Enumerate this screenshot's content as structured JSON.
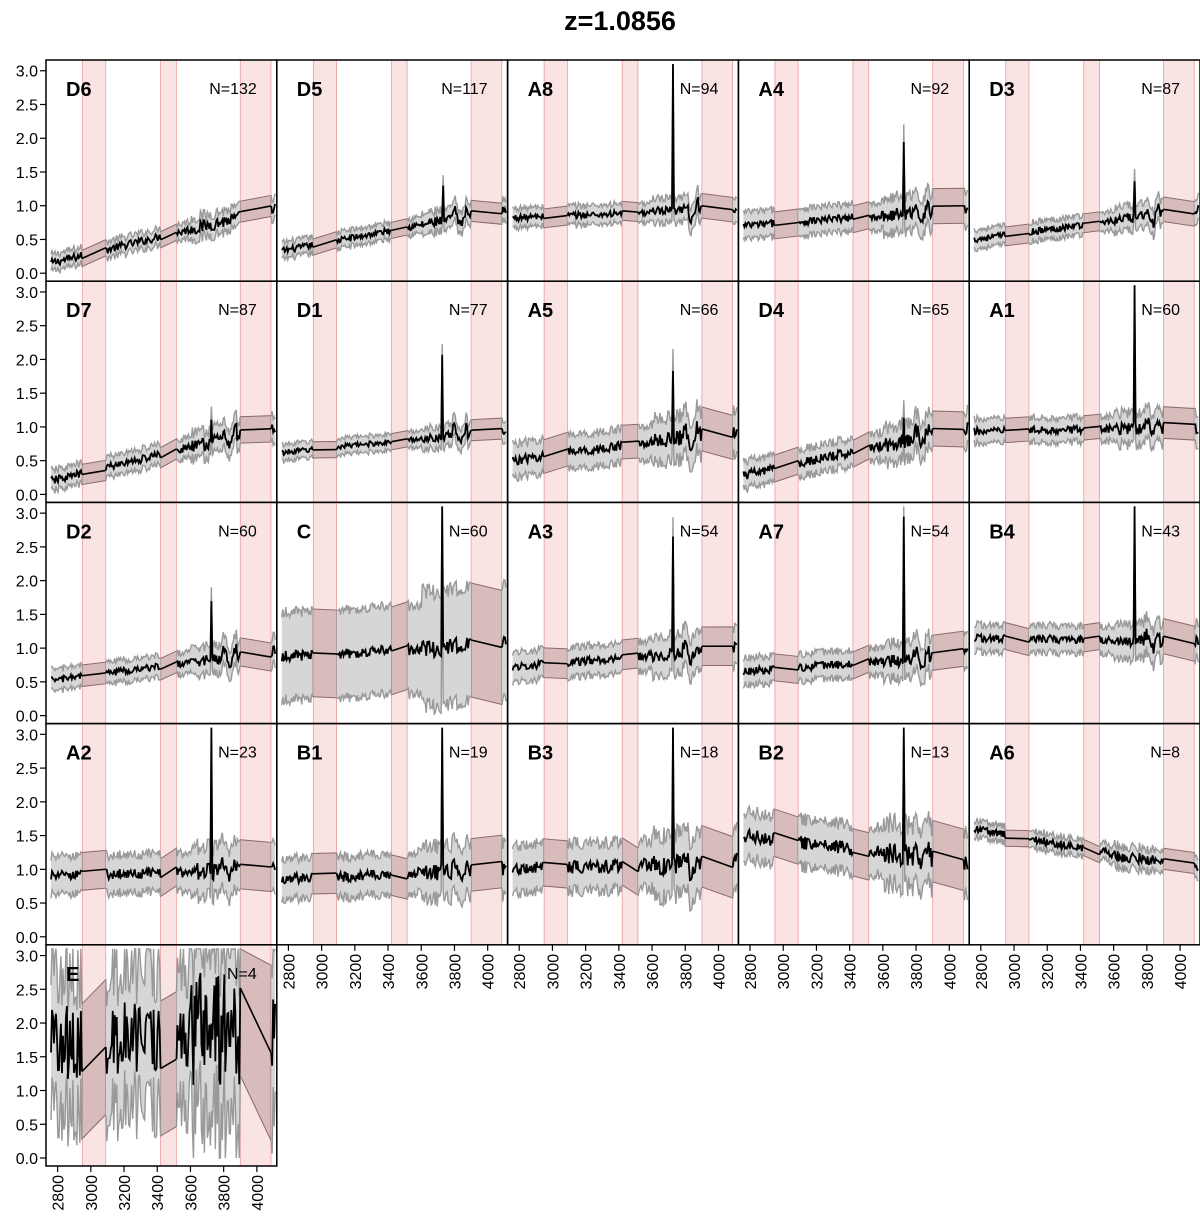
{
  "title": "z=1.0856",
  "colors": {
    "band": "#f4c2c2",
    "band_edge": "#ec9c9c",
    "envelope_fill": "#d6d6d6",
    "envelope_line": "#999999",
    "extrap_fill": "#c9a9a9",
    "extrap_line": "#8a6a6a",
    "median": "#000000"
  },
  "chart_data": {
    "type": "line",
    "layout": "5x5 small-multiples grid of line panels with shaded min/max envelope",
    "x_ticks": [
      2800,
      3000,
      3200,
      3400,
      3600,
      3800,
      4000
    ],
    "x_tick_labels": [
      "2800",
      "3000",
      "3200",
      "3400",
      "3600",
      "3800",
      "4000"
    ],
    "xlim": [
      2730,
      4120
    ],
    "y_ticks": [
      0.0,
      0.5,
      1.0,
      1.5,
      2.0,
      2.5,
      3.0
    ],
    "y_tick_labels": [
      "0.0",
      "0.5",
      "1.0",
      "1.5",
      "2.0",
      "2.5",
      "3.0"
    ],
    "ylim": [
      0,
      3.1
    ],
    "shaded_bands": [
      [
        2950,
        3090
      ],
      [
        3420,
        3515
      ],
      [
        3900,
        4085
      ]
    ],
    "gaps": [
      [
        2950,
        3090
      ],
      [
        3420,
        3515
      ],
      [
        3900,
        4085
      ]
    ],
    "grid": false,
    "panels": [
      {
        "label": "D6",
        "count": "N=132",
        "start": 0.15,
        "end": 0.95,
        "spike_x": null,
        "spike_h": 0,
        "noise": 0.06,
        "spread": 0.12
      },
      {
        "label": "D5",
        "count": "N=117",
        "start": 0.33,
        "end": 0.95,
        "spike_x": 3730,
        "spike_h": 0.45,
        "noise": 0.05,
        "spread": 0.12
      },
      {
        "label": "A8",
        "count": "N=94",
        "start": 0.82,
        "end": 0.95,
        "spike_x": 3728,
        "spike_h": 2.2,
        "noise": 0.05,
        "spread": 0.14
      },
      {
        "label": "A4",
        "count": "N=92",
        "start": 0.7,
        "end": 0.95,
        "spike_x": 3728,
        "spike_h": 1.0,
        "noise": 0.06,
        "spread": 0.2
      },
      {
        "label": "D3",
        "count": "N=87",
        "start": 0.5,
        "end": 0.95,
        "spike_x": 3728,
        "spike_h": 0.5,
        "noise": 0.05,
        "spread": 0.14
      },
      {
        "label": "D7",
        "count": "N=87",
        "start": 0.2,
        "end": 1.0,
        "spike_x": 3728,
        "spike_h": 0.3,
        "noise": 0.06,
        "spread": 0.15
      },
      {
        "label": "D1",
        "count": "N=77",
        "start": 0.62,
        "end": 0.95,
        "spike_x": 3728,
        "spike_h": 1.2,
        "noise": 0.04,
        "spread": 0.12
      },
      {
        "label": "A5",
        "count": "N=66",
        "start": 0.5,
        "end": 0.95,
        "spike_x": 3728,
        "spike_h": 1.0,
        "noise": 0.07,
        "spread": 0.25
      },
      {
        "label": "D4",
        "count": "N=65",
        "start": 0.28,
        "end": 1.0,
        "spike_x": 3728,
        "spike_h": 0.35,
        "noise": 0.07,
        "spread": 0.2
      },
      {
        "label": "A1",
        "count": "N=60",
        "start": 0.93,
        "end": 1.0,
        "spike_x": 3728,
        "spike_h": 2.4,
        "noise": 0.06,
        "spread": 0.18
      },
      {
        "label": "D2",
        "count": "N=60",
        "start": 0.52,
        "end": 0.95,
        "spike_x": 3728,
        "spike_h": 0.9,
        "noise": 0.05,
        "spread": 0.16
      },
      {
        "label": "C",
        "count": "N=60",
        "start": 0.88,
        "end": 1.05,
        "spike_x": 3728,
        "spike_h": 2.4,
        "noise": 0.08,
        "spread": 0.65
      },
      {
        "label": "A3",
        "count": "N=54",
        "start": 0.72,
        "end": 1.0,
        "spike_x": 3728,
        "spike_h": 1.8,
        "noise": 0.06,
        "spread": 0.22
      },
      {
        "label": "A7",
        "count": "N=54",
        "start": 0.65,
        "end": 0.9,
        "spike_x": 3728,
        "spike_h": 2.2,
        "noise": 0.06,
        "spread": 0.2
      },
      {
        "label": "B4",
        "count": "N=43",
        "start": 1.15,
        "end": 1.1,
        "spike_x": 3728,
        "spike_h": 2.2,
        "noise": 0.06,
        "spread": 0.2
      },
      {
        "label": "A2",
        "count": "N=23",
        "start": 0.9,
        "end": 1.0,
        "spike_x": 3728,
        "spike_h": 2.2,
        "noise": 0.08,
        "spread": 0.28
      },
      {
        "label": "B1",
        "count": "N=19",
        "start": 0.85,
        "end": 1.0,
        "spike_x": 3728,
        "spike_h": 2.4,
        "noise": 0.08,
        "spread": 0.3
      },
      {
        "label": "B3",
        "count": "N=18",
        "start": 1.0,
        "end": 1.1,
        "spike_x": 3728,
        "spike_h": 2.2,
        "noise": 0.1,
        "spread": 0.35
      },
      {
        "label": "B2",
        "count": "N=13",
        "start": 1.5,
        "end": 1.1,
        "spike_x": 3728,
        "spike_h": 2.2,
        "noise": 0.1,
        "spread": 0.35
      },
      {
        "label": "A6",
        "count": "N=8",
        "start": 1.6,
        "end": 1.0,
        "spike_x": null,
        "spike_h": 0,
        "noise": 0.06,
        "spread": 0.12
      },
      {
        "label": "E",
        "count": "N=4",
        "start": 1.7,
        "end": 2.0,
        "spike_x": null,
        "spike_h": 0,
        "noise": 0.55,
        "spread": 1.0
      }
    ]
  }
}
